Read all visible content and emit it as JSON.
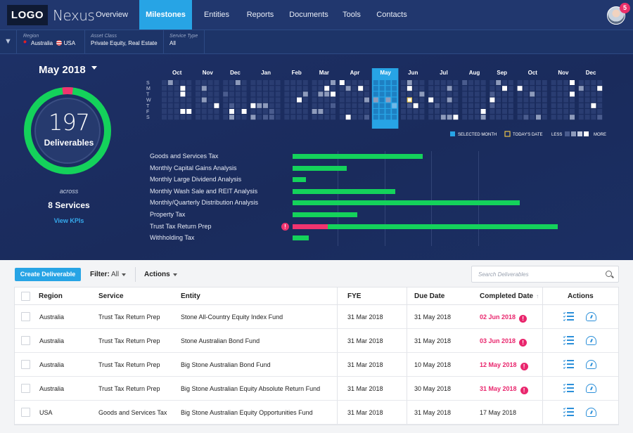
{
  "nav": {
    "logo": "LOGO",
    "brand": "Nexus",
    "links": [
      "Overview",
      "Milestones",
      "Entities",
      "Reports",
      "Documents",
      "Tools",
      "Contacts"
    ],
    "active": "Milestones",
    "notification_count": "5"
  },
  "filters": {
    "region": {
      "label": "Region",
      "values": [
        "Australia",
        "USA"
      ]
    },
    "asset_class": {
      "label": "Asset Class",
      "value": "Private Equity, Real Estate"
    },
    "service_type": {
      "label": "Service Type",
      "value": "All"
    }
  },
  "summary": {
    "month": "May 2018",
    "count": "197",
    "count_label": "Deliverables",
    "ring_fraction": 0.04,
    "across": "across",
    "services": "8 Services",
    "view_kpis": "View KPIs"
  },
  "heatmap": {
    "months": [
      "Oct",
      "Nov",
      "Dec",
      "Jan",
      "Feb",
      "Mar",
      "Apr",
      "May",
      "Jun",
      "Jul",
      "Aug",
      "Sep",
      "Oct",
      "Nov",
      "Dec"
    ],
    "selected_month": "May",
    "day_labels": [
      "S",
      "M",
      "T",
      "W",
      "T",
      "F",
      "S"
    ],
    "legend": {
      "selected": "SELECTED MONTH",
      "today": "TODAY'S DATE",
      "less": "LESS",
      "more": "MORE"
    },
    "colors": {
      "empty": "#2a3d72",
      "low": "#4a5c8e",
      "mid": "#8e9bbb",
      "high": "#ffffff",
      "selected": "#27a4e5",
      "today": "#e8c34a"
    }
  },
  "services_chart": {
    "items": [
      {
        "name": "Goods and Services Tax",
        "value": 0.48,
        "overdue": 0
      },
      {
        "name": "Monthly Capital Gains Analysis",
        "value": 0.2,
        "overdue": 0
      },
      {
        "name": "Monthly Large Dividend Analysis",
        "value": 0.05,
        "overdue": 0
      },
      {
        "name": "Monthly Wash Sale and REIT Analysis",
        "value": 0.38,
        "overdue": 0
      },
      {
        "name": "Monthly/Quarterly Distribution Analysis",
        "value": 0.84,
        "overdue": 0
      },
      {
        "name": "Property Tax",
        "value": 0.24,
        "overdue": 0
      },
      {
        "name": "Trust Tax Return Prep",
        "value": 0.98,
        "overdue": 0.13,
        "alert": "!"
      },
      {
        "name": "Withholding Tax",
        "value": 0.06,
        "overdue": 0
      }
    ],
    "colors": {
      "done": "#14d25b",
      "overdue": "#f0346f"
    }
  },
  "toolbar": {
    "create_label": "Create Deliverable",
    "filter_label": "Filter:",
    "filter_value": "All",
    "actions_label": "Actions",
    "search_placeholder": "Search Deliverables"
  },
  "table": {
    "columns": [
      "Region",
      "Service",
      "Entity",
      "FYE",
      "Due Date",
      "Completed Date",
      "Actions"
    ],
    "rows": [
      {
        "region": "Australia",
        "service": "Trust Tax Return Prep",
        "entity": "Stone All-Country Equity Index Fund",
        "fye": "31 Mar 2018",
        "due": "31 May 2018",
        "completed": "02 Jun 2018",
        "late": true
      },
      {
        "region": "Australia",
        "service": "Trust Tax Return Prep",
        "entity": "Stone Australian Bond Fund",
        "fye": "31 Mar 2018",
        "due": "31 May 2018",
        "completed": "03 Jun 2018",
        "late": true
      },
      {
        "region": "Australia",
        "service": "Trust Tax Return Prep",
        "entity": "Big Stone Australian Bond Fund",
        "fye": "31 Mar 2018",
        "due": "10 May 2018",
        "completed": "12 May 2018",
        "late": true
      },
      {
        "region": "Australia",
        "service": "Trust Tax Return Prep",
        "entity": "Big Stone Australian Equity Absolute Return Fund",
        "fye": "31 Mar 2018",
        "due": "30 May 2018",
        "completed": "31 May 2018",
        "late": true
      },
      {
        "region": "USA",
        "service": "Goods and Services Tax",
        "entity": "Big Stone Australian Equity Opportunities Fund",
        "fye": "31 Mar 2018",
        "due": "31 May 2018",
        "completed": "17 May 2018",
        "late": false
      }
    ],
    "late_icon": "!"
  }
}
